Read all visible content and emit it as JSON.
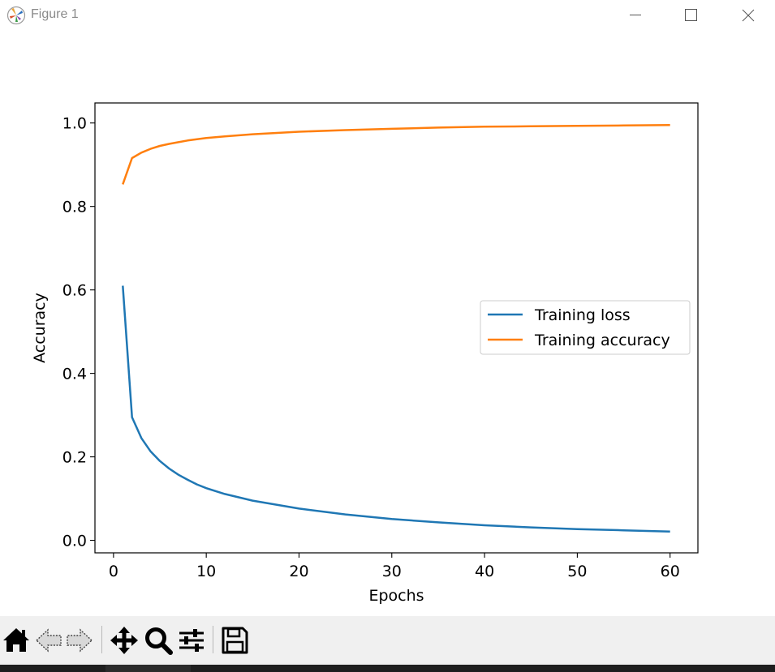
{
  "window": {
    "title": "Figure 1",
    "icons": {
      "app": "matplotlib-logo-icon",
      "minimize": "minimize-icon",
      "maximize": "maximize-icon",
      "close": "close-icon"
    }
  },
  "toolbar": {
    "buttons": [
      {
        "name": "home-button",
        "icon": "home-icon"
      },
      {
        "name": "back-button",
        "icon": "back-arrow-icon"
      },
      {
        "name": "forward-button",
        "icon": "forward-arrow-icon"
      },
      {
        "name": "pan-button",
        "icon": "move-arrows-icon"
      },
      {
        "name": "zoom-button",
        "icon": "magnifier-icon"
      },
      {
        "name": "configure-subplots-button",
        "icon": "sliders-icon"
      },
      {
        "name": "save-button",
        "icon": "floppy-disk-icon"
      }
    ]
  },
  "colors": {
    "loss": "#1f77b4",
    "accuracy": "#ff7f0e",
    "toolbar_bg": "#f0f0f0"
  },
  "chart_data": {
    "type": "line",
    "title": "",
    "xlabel": "Epochs",
    "ylabel": "Accuracy",
    "xlim": [
      -2,
      63
    ],
    "ylim": [
      -0.03,
      1.048
    ],
    "xticks": [
      0,
      10,
      20,
      30,
      40,
      50,
      60
    ],
    "yticks": [
      0.0,
      0.2,
      0.4,
      0.6,
      0.8,
      1.0
    ],
    "xtick_labels": [
      "0",
      "10",
      "20",
      "30",
      "40",
      "50",
      "60"
    ],
    "ytick_labels": [
      "0.0",
      "0.2",
      "0.4",
      "0.6",
      "0.8",
      "1.0"
    ],
    "grid": false,
    "legend": {
      "position": "center-right"
    },
    "series": [
      {
        "name": "Training loss",
        "x": [
          1,
          2,
          3,
          4,
          5,
          6,
          7,
          8,
          9,
          10,
          12,
          15,
          20,
          25,
          30,
          35,
          40,
          45,
          50,
          55,
          60
        ],
        "y": [
          0.61,
          0.295,
          0.245,
          0.213,
          0.19,
          0.172,
          0.157,
          0.145,
          0.134,
          0.125,
          0.111,
          0.095,
          0.076,
          0.062,
          0.051,
          0.043,
          0.036,
          0.031,
          0.027,
          0.024,
          0.021
        ]
      },
      {
        "name": "Training accuracy",
        "x": [
          1,
          2,
          3,
          4,
          5,
          6,
          7,
          8,
          9,
          10,
          12,
          15,
          20,
          25,
          30,
          35,
          40,
          45,
          50,
          55,
          60
        ],
        "y": [
          0.853,
          0.916,
          0.929,
          0.938,
          0.945,
          0.95,
          0.954,
          0.958,
          0.961,
          0.964,
          0.968,
          0.973,
          0.979,
          0.983,
          0.986,
          0.989,
          0.991,
          0.992,
          0.993,
          0.994,
          0.995
        ]
      }
    ]
  }
}
